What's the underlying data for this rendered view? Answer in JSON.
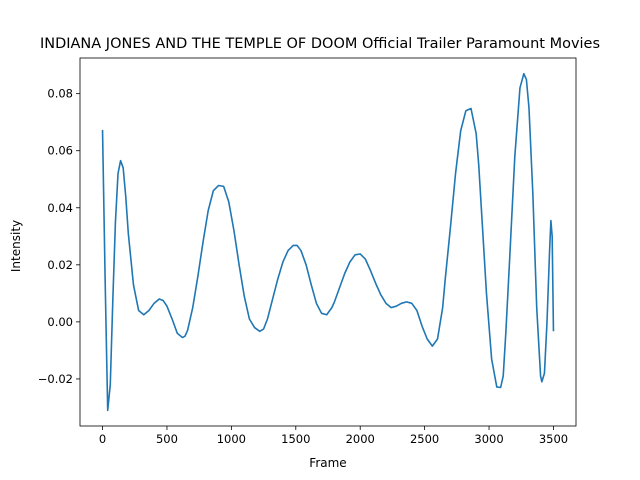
{
  "chart_data": {
    "type": "line",
    "title": "INDIANA JONES AND THE TEMPLE OF DOOM  Official Trailer  Paramount Movies",
    "xlabel": "Frame",
    "ylabel": "Intensity",
    "xlim": [
      -175,
      3675
    ],
    "ylim": [
      -0.0365,
      0.0925
    ],
    "x_ticks": [
      0,
      500,
      1000,
      1500,
      2000,
      2500,
      3000,
      3500
    ],
    "y_ticks": [
      -0.02,
      0.0,
      0.02,
      0.04,
      0.06,
      0.08
    ],
    "y_tick_labels": [
      "−0.02",
      "0.00",
      "0.02",
      "0.04",
      "0.06",
      "0.08"
    ],
    "grid": false,
    "legend": "none",
    "line_color": "#1f77b4",
    "series": [
      {
        "x": [
          0,
          20,
          40,
          60,
          80,
          100,
          120,
          140,
          160,
          180,
          200,
          240,
          280,
          320,
          360,
          400,
          440,
          470,
          500,
          540,
          580,
          620,
          640,
          660,
          700,
          740,
          780,
          820,
          860,
          900,
          940,
          980,
          1020,
          1060,
          1100,
          1140,
          1180,
          1220,
          1250,
          1280,
          1320,
          1360,
          1400,
          1440,
          1480,
          1510,
          1540,
          1580,
          1620,
          1660,
          1700,
          1740,
          1780,
          1800,
          1840,
          1880,
          1920,
          1960,
          2000,
          2040,
          2080,
          2120,
          2160,
          2200,
          2240,
          2280,
          2320,
          2360,
          2400,
          2440,
          2480,
          2520,
          2560,
          2600,
          2640,
          2660,
          2700,
          2740,
          2780,
          2820,
          2860,
          2900,
          2920,
          2940,
          2980,
          3020,
          3060,
          3090,
          3110,
          3130,
          3160,
          3200,
          3240,
          3270,
          3290,
          3310,
          3340,
          3370,
          3400,
          3410,
          3430,
          3450,
          3470,
          3480,
          3490,
          3500
        ],
        "y": [
          0.067,
          0.015,
          -0.031,
          -0.022,
          0.008,
          0.035,
          0.052,
          0.0565,
          0.054,
          0.044,
          0.031,
          0.013,
          0.004,
          0.0025,
          0.004,
          0.0065,
          0.008,
          0.0075,
          0.0055,
          0.001,
          -0.004,
          -0.0055,
          -0.005,
          -0.003,
          0.005,
          0.016,
          0.028,
          0.039,
          0.046,
          0.0478,
          0.0475,
          0.042,
          0.032,
          0.02,
          0.009,
          0.001,
          -0.002,
          -0.0033,
          -0.0025,
          0.001,
          0.008,
          0.015,
          0.021,
          0.025,
          0.0268,
          0.0268,
          0.025,
          0.02,
          0.013,
          0.0065,
          0.003,
          0.0025,
          0.005,
          0.007,
          0.012,
          0.017,
          0.021,
          0.0235,
          0.0238,
          0.022,
          0.018,
          0.0135,
          0.0095,
          0.0065,
          0.005,
          0.0055,
          0.0065,
          0.007,
          0.0065,
          0.004,
          -0.0015,
          -0.006,
          -0.0085,
          -0.006,
          0.005,
          0.015,
          0.033,
          0.052,
          0.067,
          0.074,
          0.0748,
          0.066,
          0.055,
          0.04,
          0.01,
          -0.013,
          -0.0228,
          -0.023,
          -0.019,
          -0.004,
          0.022,
          0.058,
          0.082,
          0.087,
          0.085,
          0.075,
          0.045,
          0.005,
          -0.019,
          -0.021,
          -0.018,
          0.0,
          0.025,
          0.0355,
          0.03,
          -0.003
        ]
      }
    ]
  }
}
